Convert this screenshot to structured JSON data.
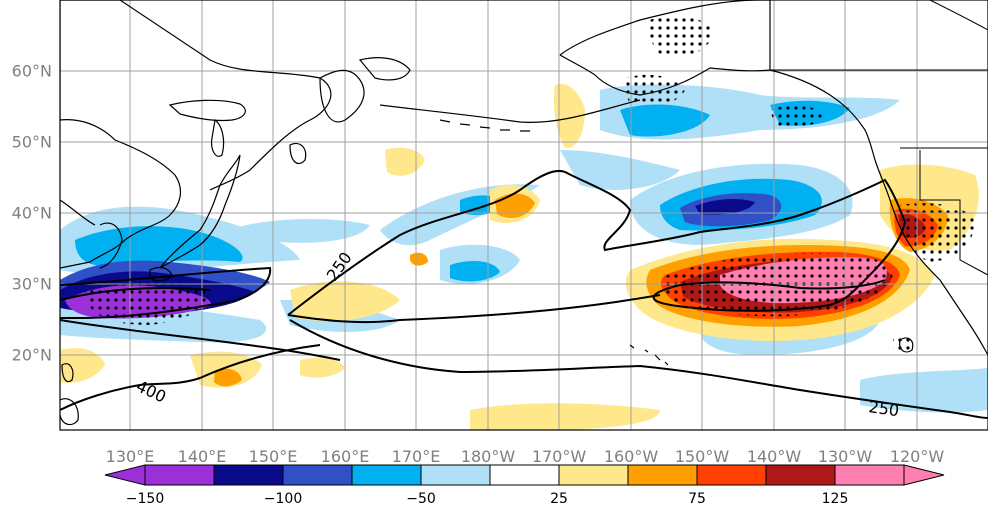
{
  "map": {
    "lat_labels": [
      "60°N",
      "50°N",
      "40°N",
      "30°N",
      "20°N"
    ],
    "lon_labels": [
      "130°E",
      "140°E",
      "150°E",
      "160°E",
      "170°E",
      "180°W",
      "170°W",
      "160°W",
      "150°W",
      "140°W",
      "130°W",
      "120°W"
    ],
    "contour_labels": [
      "250",
      "400",
      "250"
    ]
  },
  "colorbar": {
    "ticks": [
      "−150",
      "−100",
      "−50",
      "25",
      "75",
      "125"
    ],
    "colors": [
      "#9b30d8",
      "#0a0a8c",
      "#3050c8",
      "#00b0f0",
      "#b0e0f8",
      "#ffffff",
      "#ffe88c",
      "#ffa000",
      "#ff4000",
      "#b01818",
      "#ff80b0"
    ]
  }
}
